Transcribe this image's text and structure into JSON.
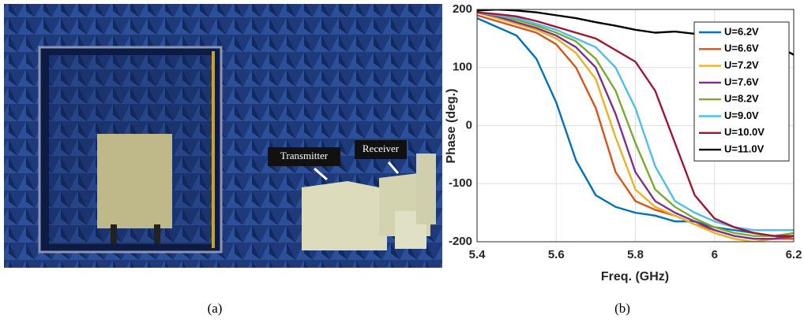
{
  "photo": {
    "labels": [
      "Transmitter",
      "Receiver"
    ],
    "caption": "(a)"
  },
  "chart_data": {
    "type": "line",
    "caption": "(b)",
    "x_label": "Freq. (GHz)",
    "y_label": "Phase (deg.)",
    "x": [
      5.4,
      5.45,
      5.5,
      5.55,
      5.6,
      5.65,
      5.7,
      5.75,
      5.8,
      5.85,
      5.9,
      5.95,
      6.0,
      6.05,
      6.1,
      6.15,
      6.2
    ],
    "xlim": [
      5.4,
      6.2
    ],
    "ylim": [
      -200,
      200
    ],
    "xticks": [
      5.4,
      5.6,
      5.8,
      6,
      6.2
    ],
    "yticks": [
      -200,
      -100,
      0,
      100,
      200
    ],
    "grid": true,
    "legend": "top-right",
    "series": [
      {
        "name": "U=6.2V",
        "color": "#0072BD",
        "values": [
          185,
          170,
          155,
          115,
          40,
          -60,
          -120,
          -140,
          -150,
          -155,
          -165,
          -165,
          -175,
          -180,
          -185,
          -190,
          -195
        ]
      },
      {
        "name": "U=6.6V",
        "color": "#D95319",
        "values": [
          190,
          180,
          170,
          160,
          140,
          100,
          30,
          -80,
          -130,
          -145,
          -155,
          -170,
          -180,
          -190,
          -195,
          -195,
          -195
        ]
      },
      {
        "name": "U=7.2V",
        "color": "#EDB120",
        "values": [
          195,
          185,
          175,
          165,
          150,
          125,
          80,
          -20,
          -110,
          -140,
          -155,
          -170,
          -185,
          -195,
          -200,
          -195,
          -190
        ]
      },
      {
        "name": "U=7.6V",
        "color": "#7E2F8E",
        "values": [
          195,
          188,
          178,
          168,
          155,
          135,
          100,
          20,
          -80,
          -130,
          -150,
          -165,
          -180,
          -190,
          -195,
          -195,
          -190
        ]
      },
      {
        "name": "U=8.2V",
        "color": "#77AC30",
        "values": [
          195,
          190,
          182,
          172,
          160,
          145,
          115,
          60,
          -30,
          -110,
          -140,
          -160,
          -175,
          -185,
          -190,
          -190,
          -185
        ]
      },
      {
        "name": "U=9.0V",
        "color": "#4DBEEE",
        "values": [
          195,
          190,
          185,
          175,
          165,
          150,
          135,
          100,
          30,
          -70,
          -130,
          -150,
          -165,
          -175,
          -180,
          -180,
          -180
        ]
      },
      {
        "name": "U=10.0V",
        "color": "#A2142F",
        "values": [
          195,
          192,
          188,
          180,
          170,
          160,
          150,
          130,
          110,
          60,
          -30,
          -120,
          -160,
          -175,
          -185,
          -190,
          -190
        ]
      },
      {
        "name": "U=11.0V",
        "color": "#000000",
        "values": [
          198,
          200,
          198,
          195,
          190,
          185,
          178,
          172,
          165,
          160,
          162,
          158,
          155,
          150,
          145,
          140,
          122
        ]
      }
    ]
  }
}
